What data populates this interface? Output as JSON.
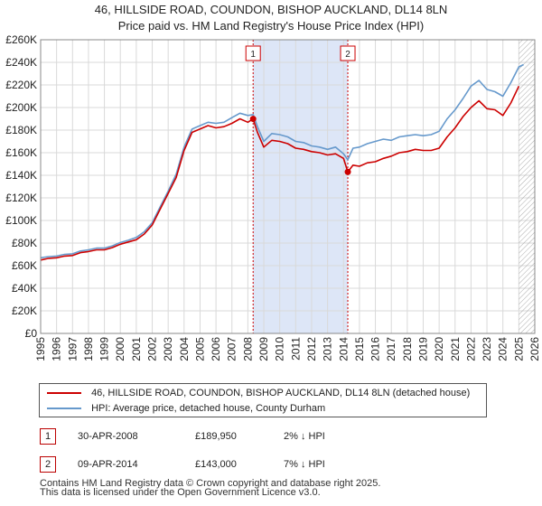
{
  "title": {
    "line1": "46, HILLSIDE ROAD, COUNDON, BISHOP AUCKLAND, DL14 8LN",
    "line2": "Price paid vs. HM Land Registry's House Price Index (HPI)"
  },
  "colors": {
    "property": "#cc0000",
    "hpi": "#6699cc",
    "shade": "#dde6f7",
    "marker_line": "#cc0000",
    "grid": "#d9d9d9"
  },
  "chart_data": {
    "type": "line",
    "title": "Price paid vs. HM Land Registry's House Price Index (HPI)",
    "xlabel": "",
    "ylabel": "",
    "xlim": [
      1995.0,
      2026.0
    ],
    "ylim": [
      0,
      260000
    ],
    "y_ticks": [
      0,
      20000,
      40000,
      60000,
      80000,
      100000,
      120000,
      140000,
      160000,
      180000,
      200000,
      220000,
      240000,
      260000
    ],
    "y_tick_labels": [
      "£0",
      "£20K",
      "£40K",
      "£60K",
      "£80K",
      "£100K",
      "£120K",
      "£140K",
      "£160K",
      "£180K",
      "£200K",
      "£220K",
      "£240K",
      "£260K"
    ],
    "x_ticks": [
      1995,
      1996,
      1997,
      1998,
      1999,
      2000,
      2001,
      2002,
      2003,
      2004,
      2005,
      2006,
      2007,
      2008,
      2009,
      2010,
      2011,
      2012,
      2013,
      2014,
      2015,
      2016,
      2017,
      2018,
      2019,
      2020,
      2021,
      2022,
      2023,
      2024,
      2025,
      2026
    ],
    "x_tick_labels": [
      "1995",
      "1996",
      "1997",
      "1998",
      "1999",
      "2000",
      "2001",
      "2002",
      "2003",
      "2004",
      "2005",
      "2006",
      "2007",
      "2008",
      "2009",
      "2010",
      "2011",
      "2012",
      "2013",
      "2014",
      "2015",
      "2016",
      "2017",
      "2018",
      "2019",
      "2020",
      "2021",
      "2022",
      "2023",
      "2024",
      "2025",
      "2026"
    ],
    "grid": true,
    "shaded_range": [
      2008.33,
      2014.27
    ],
    "hatched_from": 2025.0,
    "series": [
      {
        "name": "46, HILLSIDE ROAD, COUNDON, BISHOP AUCKLAND, DL14 8LN (detached house)",
        "color": "#cc0000",
        "x": [
          1995.0,
          1995.5,
          1996.0,
          1996.5,
          1997.0,
          1997.5,
          1998.0,
          1998.5,
          1999.0,
          1999.5,
          2000.0,
          2000.5,
          2001.0,
          2001.5,
          2002.0,
          2002.5,
          2003.0,
          2003.5,
          2004.0,
          2004.5,
          2005.0,
          2005.5,
          2006.0,
          2006.5,
          2007.0,
          2007.5,
          2008.0,
          2008.33,
          2008.6,
          2009.0,
          2009.5,
          2010.0,
          2010.5,
          2011.0,
          2011.5,
          2012.0,
          2012.5,
          2013.0,
          2013.5,
          2014.0,
          2014.27,
          2014.6,
          2015.0,
          2015.5,
          2016.0,
          2016.5,
          2017.0,
          2017.5,
          2018.0,
          2018.5,
          2019.0,
          2019.5,
          2020.0,
          2020.5,
          2021.0,
          2021.5,
          2022.0,
          2022.5,
          2023.0,
          2023.5,
          2024.0,
          2024.5,
          2025.0
        ],
        "values": [
          65000,
          66500,
          67000,
          68500,
          69000,
          71500,
          72500,
          74000,
          74000,
          76000,
          79000,
          81000,
          83000,
          88000,
          96000,
          110000,
          124000,
          138000,
          162000,
          178000,
          181000,
          184000,
          182000,
          183000,
          186000,
          190000,
          187000,
          189950,
          178000,
          165000,
          171000,
          170000,
          168000,
          164000,
          163000,
          161000,
          160000,
          158000,
          159000,
          155000,
          143000,
          149000,
          148000,
          151000,
          152000,
          155000,
          157000,
          160000,
          161000,
          163000,
          162000,
          162000,
          164000,
          174000,
          182000,
          192000,
          200000,
          206000,
          199000,
          198000,
          193000,
          204000,
          219000
        ]
      },
      {
        "name": "HPI: Average price, detached house, County Durham",
        "color": "#6699cc",
        "x": [
          1995.0,
          1995.5,
          1996.0,
          1996.5,
          1997.0,
          1997.5,
          1998.0,
          1998.5,
          1999.0,
          1999.5,
          2000.0,
          2000.5,
          2001.0,
          2001.5,
          2002.0,
          2002.5,
          2003.0,
          2003.5,
          2004.0,
          2004.5,
          2005.0,
          2005.5,
          2006.0,
          2006.5,
          2007.0,
          2007.5,
          2008.0,
          2008.33,
          2008.6,
          2009.0,
          2009.5,
          2010.0,
          2010.5,
          2011.0,
          2011.5,
          2012.0,
          2012.5,
          2013.0,
          2013.5,
          2014.0,
          2014.27,
          2014.6,
          2015.0,
          2015.5,
          2016.0,
          2016.5,
          2017.0,
          2017.5,
          2018.0,
          2018.5,
          2019.0,
          2019.5,
          2020.0,
          2020.5,
          2021.0,
          2021.5,
          2022.0,
          2022.5,
          2023.0,
          2023.5,
          2024.0,
          2024.5,
          2025.0,
          2025.3
        ],
        "values": [
          67000,
          68000,
          68500,
          70000,
          70500,
          73000,
          74000,
          75500,
          75500,
          77500,
          80500,
          82500,
          85000,
          90000,
          98000,
          112000,
          126000,
          141000,
          165000,
          181000,
          184000,
          187000,
          186000,
          187000,
          191000,
          195000,
          193000,
          193800,
          183000,
          170000,
          177000,
          176000,
          174000,
          170000,
          169000,
          166000,
          165000,
          163000,
          165000,
          159000,
          153800,
          164000,
          165000,
          168000,
          170000,
          172000,
          171000,
          174000,
          175000,
          176000,
          175000,
          176000,
          179000,
          190000,
          198000,
          208000,
          219000,
          224000,
          216000,
          214000,
          210000,
          222000,
          236000,
          238000
        ]
      }
    ],
    "sales": [
      {
        "label": "1",
        "x": 2008.33,
        "value": 189950
      },
      {
        "label": "2",
        "x": 2014.27,
        "value": 143000
      }
    ]
  },
  "legend": {
    "property_label": "46, HILLSIDE ROAD, COUNDON, BISHOP AUCKLAND, DL14 8LN (detached house)",
    "hpi_label": "HPI: Average price, detached house, County Durham"
  },
  "transactions": [
    {
      "num": "1",
      "date": "30-APR-2008",
      "price": "£189,950",
      "hpi": "2% ↓ HPI"
    },
    {
      "num": "2",
      "date": "09-APR-2014",
      "price": "£143,000",
      "hpi": "7% ↓ HPI"
    }
  ],
  "footer": {
    "line1": "Contains HM Land Registry data © Crown copyright and database right 2025.",
    "line2": "This data is licensed under the Open Government Licence v3.0."
  }
}
